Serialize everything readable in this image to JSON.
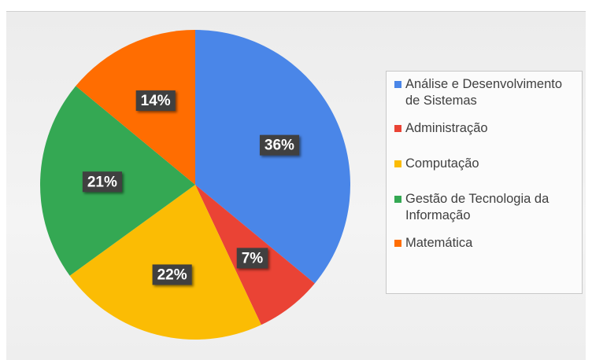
{
  "chart_data": {
    "type": "pie",
    "categories": [
      "Análise e Desenvolvimento de Sistemas",
      "Administração",
      "Computação",
      "Gestão de Tecnologia da Informação",
      "Matemática"
    ],
    "values": [
      36,
      7,
      22,
      21,
      14
    ],
    "value_labels": [
      "36%",
      "7%",
      "22%",
      "21%",
      "14%"
    ],
    "colors": [
      "#4a86e8",
      "#ea4335",
      "#fbbc04",
      "#34a853",
      "#ff6d01"
    ],
    "legend": "right"
  }
}
